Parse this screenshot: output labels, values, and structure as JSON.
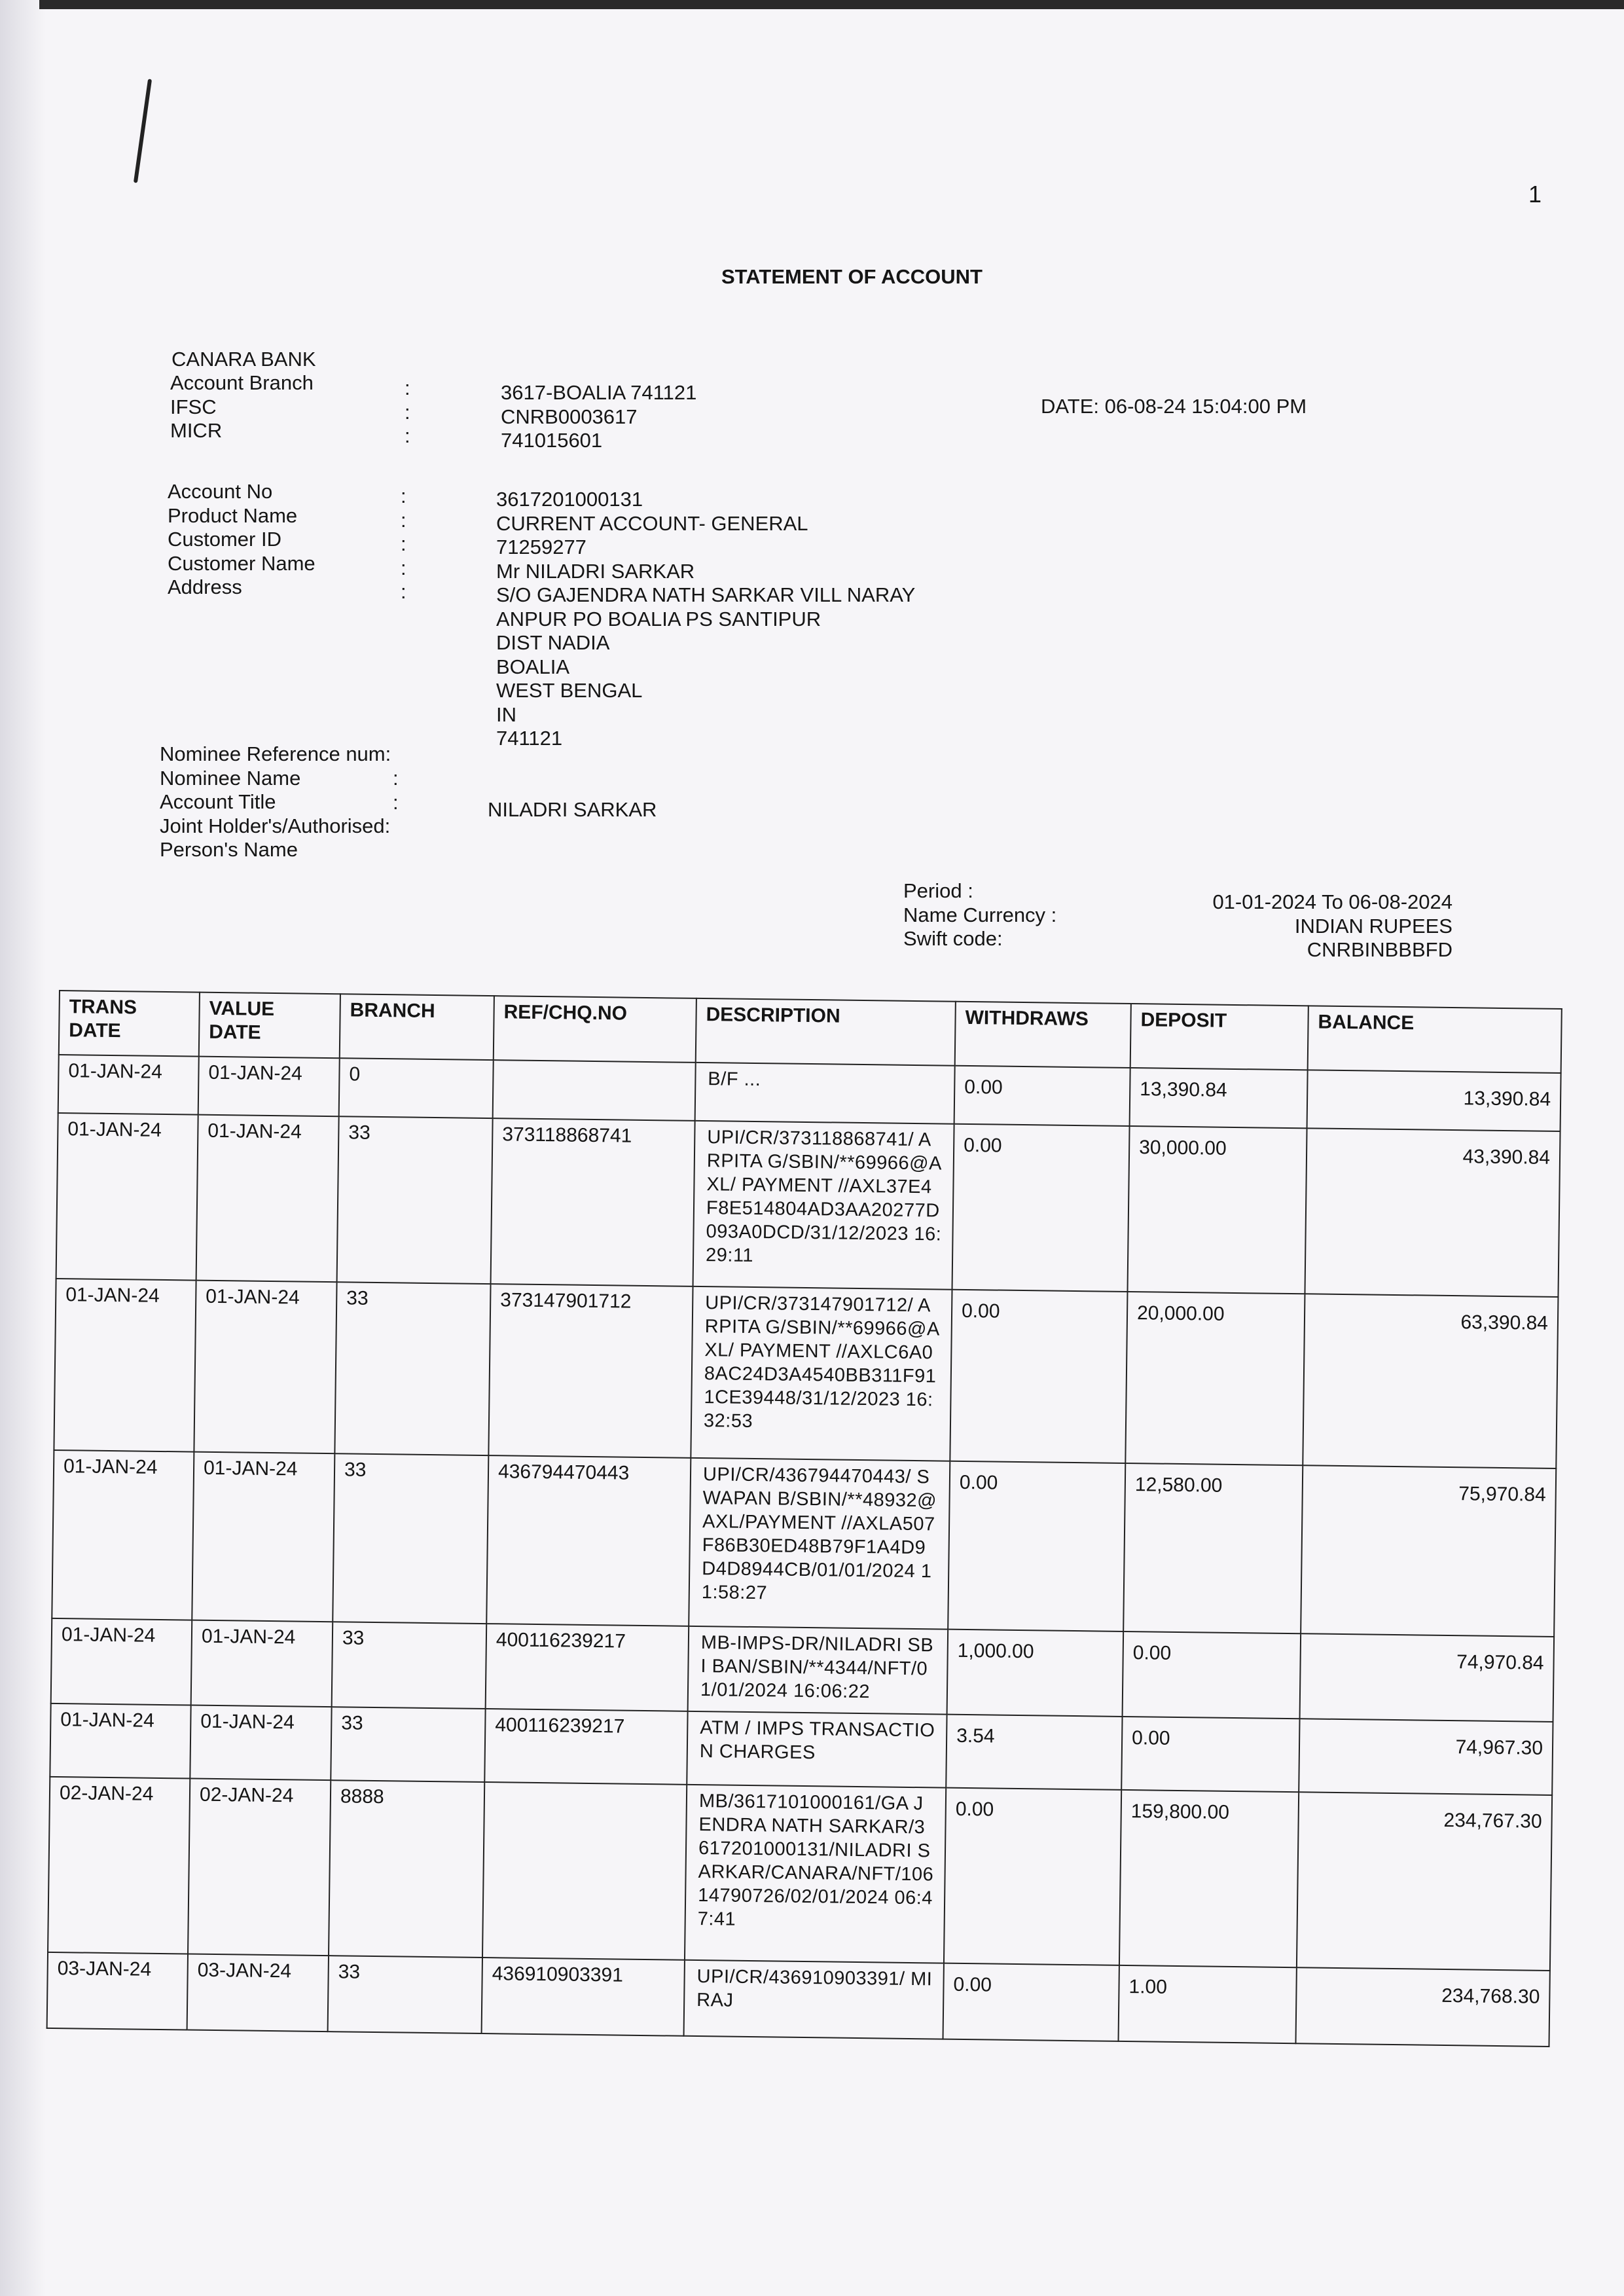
{
  "page_number": "1",
  "title": "STATEMENT OF ACCOUNT",
  "bank": {
    "name": "CANARA BANK",
    "labels": [
      "Account Branch",
      "IFSC",
      "MICR"
    ],
    "values": [
      "3617-BOALIA 741121",
      "CNRB0003617",
      "741015601"
    ],
    "date": "DATE: 06-08-24   15:04:00 PM"
  },
  "account": {
    "labels": [
      "Account No",
      "Product Name",
      "Customer ID",
      "Customer Name",
      "Address"
    ],
    "values": [
      "3617201000131",
      "CURRENT ACCOUNT- GENERAL",
      "71259277",
      "Mr  NILADRI SARKAR",
      "S/O GAJENDRA NATH SARKAR VILL NARAY",
      "ANPUR PO BOALIA PS SANTIPUR",
      "DIST NADIA",
      "BOALIA",
      "WEST BENGAL",
      "IN",
      "741121"
    ]
  },
  "nominee": {
    "labels": [
      "Nominee Reference num",
      "Nominee Name",
      "Account Title",
      "Joint Holder's/Authorised",
      "Person's Name"
    ],
    "account_title": "NILADRI SARKAR"
  },
  "period": {
    "labels": [
      "Period :",
      "Name Currency :",
      "Swift code:"
    ],
    "values": [
      "01-01-2024  To  06-08-2024",
      "INDIAN RUPEES",
      "CNRBINBBBFD"
    ]
  },
  "table": {
    "headers": [
      "TRANS DATE",
      "VALUE DATE",
      "BRANCH",
      "REF/CHQ.NO",
      "DESCRIPTION",
      "WITHDRAWS",
      "DEPOSIT",
      "BALANCE"
    ],
    "rows": [
      [
        "01-JAN-24",
        "01-JAN-24",
        "0",
        "",
        "B/F ...",
        "0.00",
        "13,390.84",
        "13,390.84"
      ],
      [
        "01-JAN-24",
        "01-JAN-24",
        "33",
        "373118868741",
        "UPI/CR/373118868741/ ARPITA G/SBIN/**69966@AXL/ PAYMENT //AXL37E4F8E514804AD3AA20277D093A0DCD/31/12/2023 16:29:11",
        "0.00",
        "30,000.00",
        "43,390.84"
      ],
      [
        "01-JAN-24",
        "01-JAN-24",
        "33",
        "373147901712",
        "UPI/CR/373147901712/ ARPITA G/SBIN/**69966@AXL/ PAYMENT //AXLC6A08AC24D3A4540BB311F911CE39448/31/12/2023 16:32:53",
        "0.00",
        "20,000.00",
        "63,390.84"
      ],
      [
        "01-JAN-24",
        "01-JAN-24",
        "33",
        "436794470443",
        "UPI/CR/436794470443/ SWAPAN B/SBIN/**48932@AXL/PAYMENT //AXLA507F86B30ED48B79F1A4D9D4D8944CB/01/01/2024 11:58:27",
        "0.00",
        "12,580.00",
        "75,970.84"
      ],
      [
        "01-JAN-24",
        "01-JAN-24",
        "33",
        "400116239217",
        "MB-IMPS-DR/NILADRI SBI BAN/SBIN/**4344/NFT/01/01/2024 16:06:22",
        "1,000.00",
        "0.00",
        "74,970.84"
      ],
      [
        "01-JAN-24",
        "01-JAN-24",
        "33",
        "400116239217",
        "ATM / IMPS TRANSACTION CHARGES",
        "3.54",
        "0.00",
        "74,967.30"
      ],
      [
        "02-JAN-24",
        "02-JAN-24",
        "8888",
        "",
        "MB/3617101000161/GA JENDRA NATH SARKAR/3617201000131/NILADRI SARKAR/CANARA/NFT/10614790726/02/01/2024 06:47:41",
        "0.00",
        "159,800.00",
        "234,767.30"
      ],
      [
        "03-JAN-24",
        "03-JAN-24",
        "33",
        "436910903391",
        "UPI/CR/436910903391/ MIRAJ",
        "0.00",
        "1.00",
        "234,768.30"
      ]
    ]
  }
}
